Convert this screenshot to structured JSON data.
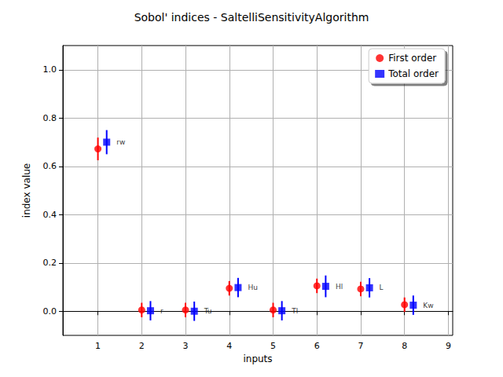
{
  "chart_data": {
    "type": "scatter",
    "title": "Sobol' indices - SaltelliSensitivityAlgorithm",
    "x_label": "inputs",
    "y_label": "index value",
    "xlim": [
      0.2,
      9.1
    ],
    "xticks": [
      1,
      2,
      3,
      4,
      5,
      6,
      7,
      8,
      9
    ],
    "ylim": [
      -0.1,
      1.1
    ],
    "yticks": [
      {
        "value": 0,
        "label": "0.0"
      },
      {
        "value": 0.2,
        "label": "0.2"
      },
      {
        "value": 0.4,
        "label": "0.4"
      },
      {
        "value": 0.6,
        "label": "0.6"
      },
      {
        "value": 0.8,
        "label": "0.8"
      },
      {
        "value": 1.0,
        "label": "1.0"
      }
    ],
    "grid": true,
    "legend": "upper right",
    "series": [
      {
        "name": "First order",
        "color": "#ff0000",
        "marker": "circle",
        "x": [
          1,
          2,
          3,
          4,
          5,
          6,
          7,
          8
        ],
        "values": [
          0.672,
          0.005,
          0.005,
          0.095,
          0.005,
          0.105,
          0.092,
          0.027
        ],
        "errors": [
          0.047,
          0.03,
          0.03,
          0.03,
          0.03,
          0.03,
          0.03,
          0.03
        ]
      },
      {
        "name": "Total order",
        "color": "#0000ff",
        "marker": "square",
        "x": [
          1.2,
          2.2,
          3.2,
          4.2,
          5.2,
          6.2,
          7.2,
          8.2
        ],
        "values": [
          0.7,
          0.002,
          0.0,
          0.098,
          0.002,
          0.103,
          0.097,
          0.025
        ],
        "errors": [
          0.05,
          0.04,
          0.04,
          0.04,
          0.04,
          0.045,
          0.04,
          0.04
        ],
        "point_labels": [
          "rw",
          "r",
          "Tu",
          "Hu",
          "Tl",
          "Hl",
          "L",
          "Kw"
        ]
      }
    ]
  }
}
